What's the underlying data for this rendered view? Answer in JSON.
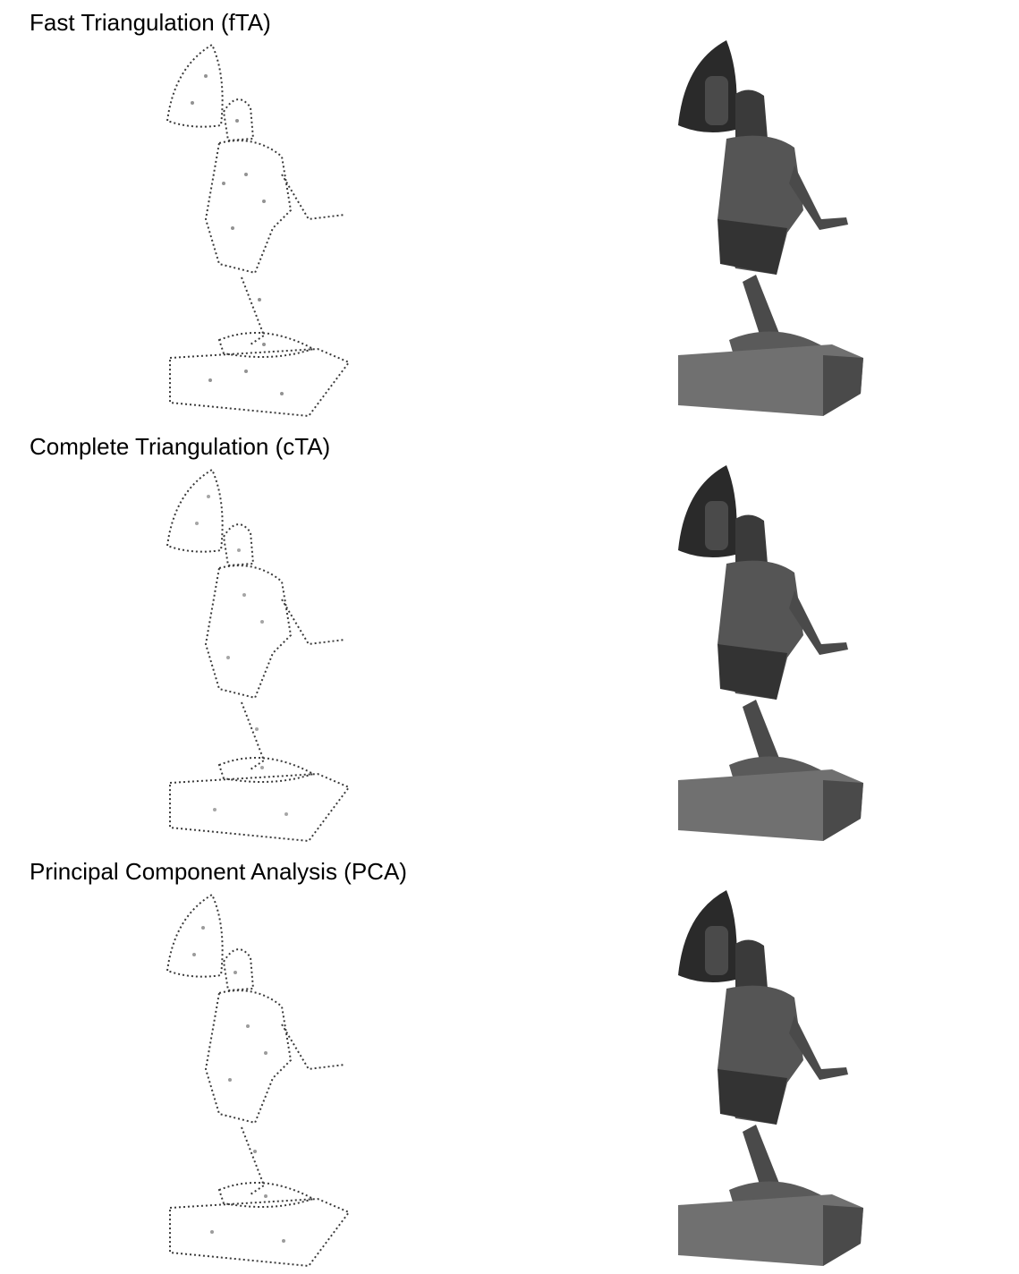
{
  "rows": [
    {
      "title": "Fast Triangulation (fTA)",
      "left_render": "point-sample-statue",
      "right_render": "shaded-mesh-statue"
    },
    {
      "title": "Complete Triangulation (cTA)",
      "left_render": "point-sample-statue",
      "right_render": "shaded-mesh-statue"
    },
    {
      "title": "Principal Component Analysis (PCA)",
      "left_render": "point-sample-statue",
      "right_render": "shaded-mesh-statue"
    }
  ],
  "colors": {
    "background": "#ffffff",
    "text": "#000000",
    "sparse_points": "#3a3a3a",
    "mesh_dark": "#2a2a2a",
    "mesh_mid": "#4a4a4a",
    "mesh_light": "#6a6a6a",
    "base_gray": "#707070"
  }
}
